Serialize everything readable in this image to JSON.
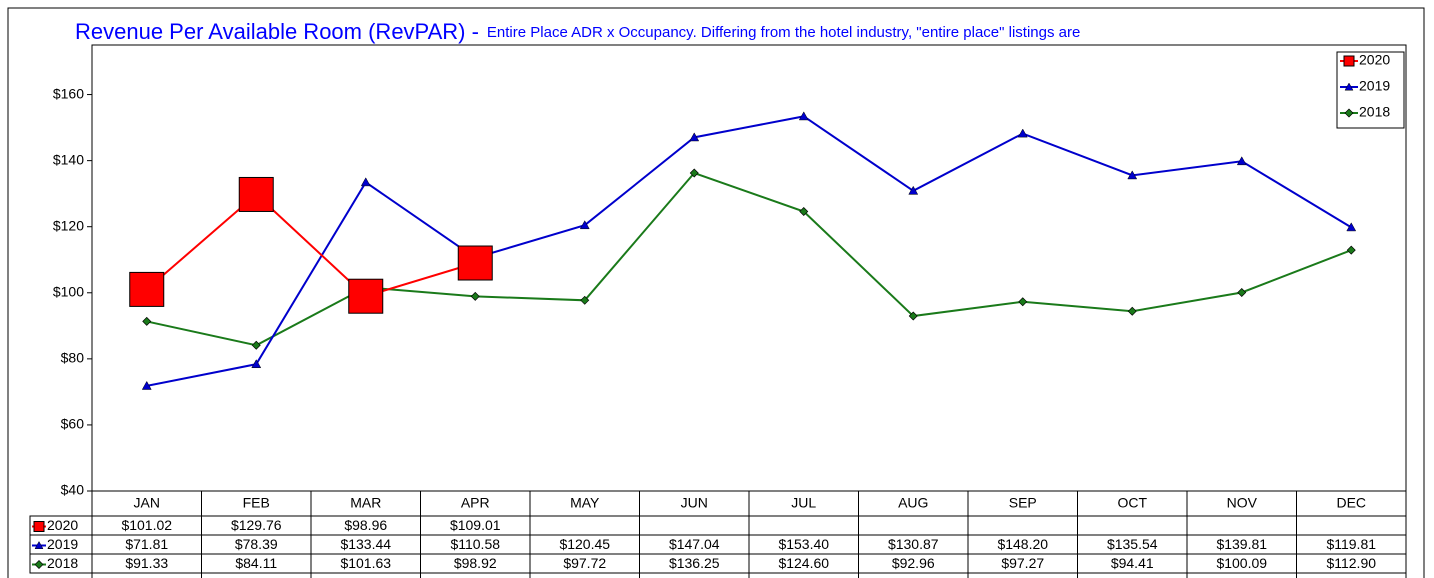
{
  "chart_data": {
    "type": "line",
    "title": "Revenue Per Available Room (RevPAR) -",
    "subtitle": "Entire Place ADR x Occupancy. Differing from the hotel industry, \"entire place\" listings are",
    "categories": [
      "JAN",
      "FEB",
      "MAR",
      "APR",
      "MAY",
      "JUN",
      "JUL",
      "AUG",
      "SEP",
      "OCT",
      "NOV",
      "DEC"
    ],
    "series": [
      {
        "name": "2020",
        "color": "#ff0000",
        "marker": "square",
        "values": [
          101.02,
          129.76,
          98.96,
          109.01,
          null,
          null,
          null,
          null,
          null,
          null,
          null,
          null
        ],
        "value_labels": [
          "$101.02",
          "$129.76",
          "$98.96",
          "$109.01",
          null,
          null,
          null,
          null,
          null,
          null,
          null,
          null
        ]
      },
      {
        "name": "2019",
        "color": "#0000cc",
        "marker": "triangle",
        "values": [
          71.81,
          78.39,
          133.44,
          110.58,
          120.45,
          147.04,
          153.4,
          130.87,
          148.2,
          135.54,
          139.81,
          119.81
        ],
        "value_labels": [
          "$71.81",
          "$78.39",
          "$133.44",
          "$110.58",
          "$120.45",
          "$147.04",
          "$153.40",
          "$130.87",
          "$148.20",
          "$135.54",
          "$139.81",
          "$119.81"
        ]
      },
      {
        "name": "2018",
        "color": "#1a7a1a",
        "marker": "diamond",
        "values": [
          91.33,
          84.11,
          101.63,
          98.92,
          97.72,
          136.25,
          124.6,
          92.96,
          97.27,
          94.41,
          100.09,
          112.9
        ],
        "value_labels": [
          "$91.33",
          "$84.11",
          "$101.63",
          "$98.92",
          "$97.72",
          "$136.25",
          "$124.60",
          "$92.96",
          "$97.27",
          "$94.41",
          "$100.09",
          "$112.90"
        ]
      }
    ],
    "ylim": [
      40,
      175
    ],
    "yticks": [
      {
        "value": 40,
        "label": "$40"
      },
      {
        "value": 60,
        "label": "$60"
      },
      {
        "value": 80,
        "label": "$80"
      },
      {
        "value": 100,
        "label": "$100"
      },
      {
        "value": 120,
        "label": "$120"
      },
      {
        "value": 140,
        "label": "$140"
      },
      {
        "value": 160,
        "label": "$160"
      }
    ],
    "grid": false,
    "legend": "top-right"
  }
}
